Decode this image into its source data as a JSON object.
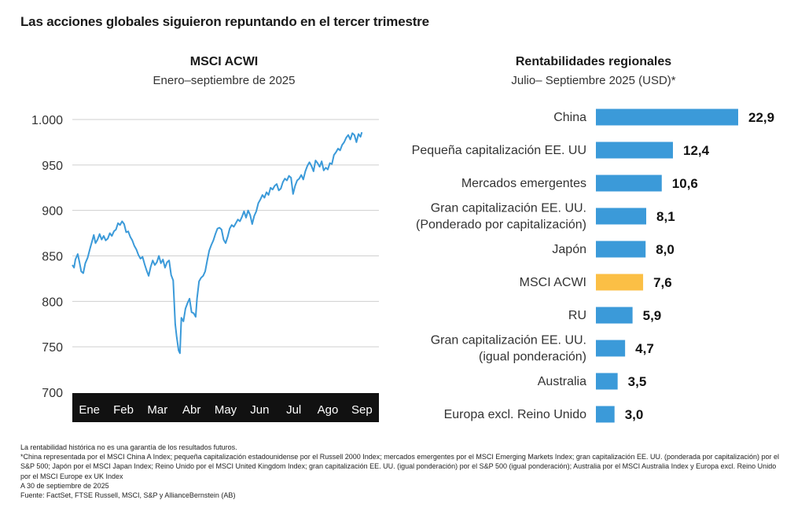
{
  "main_title": "Las acciones globales siguieron repuntando en el tercer trimestre",
  "footnotes": [
    "La rentabilidad histórica no es una garantía de los resultados futuros.",
    "*China representada por el MSCI China A Index; pequeña capitalización estadounidense por el Russell 2000 Index; mercados emergentes por el MSCI Emerging Markets Index; gran capitalización EE. UU. (ponderada por capitalización) por el S&P 500; Japón por el MSCI Japan Index; Reino Unido por el MSCI United Kingdom Index; gran capitalización EE. UU. (igual ponderación) por el S&P 500 (igual ponderación); Australia por el MSCI Australia Index y Europa excl. Reino Unido por el MSCI Europe ex UK Index",
    "A 30 de septiembre de 2025",
    "Fuente: FactSet, FTSE Russell, MSCI, S&P y AllianceBernstein (AB)"
  ],
  "chart_data": [
    {
      "type": "line",
      "title": "MSCI ACWI",
      "subtitle": "Enero–septiembre de 2025",
      "xlabel": "",
      "ylabel": "",
      "x_ticks": [
        "Ene",
        "Feb",
        "Mar",
        "Abr",
        "May",
        "Jun",
        "Jul",
        "Ago",
        "Sep"
      ],
      "y_ticks": [
        "1.000",
        "950",
        "900",
        "850",
        "800",
        "750",
        "700"
      ],
      "ylim": [
        700,
        1000
      ],
      "xlim": [
        0,
        9
      ],
      "grid": true,
      "series": [
        {
          "color": "#3b9ad9",
          "points": [
            [
              0.0,
              840
            ],
            [
              0.05,
              837
            ],
            [
              0.09,
              846
            ],
            [
              0.16,
              852
            ],
            [
              0.21,
              843
            ],
            [
              0.26,
              833
            ],
            [
              0.32,
              831
            ],
            [
              0.38,
              842
            ],
            [
              0.45,
              848
            ],
            [
              0.52,
              858
            ],
            [
              0.58,
              866
            ],
            [
              0.63,
              873
            ],
            [
              0.68,
              864
            ],
            [
              0.74,
              868
            ],
            [
              0.8,
              874
            ],
            [
              0.86,
              868
            ],
            [
              0.92,
              872
            ],
            [
              0.98,
              867
            ],
            [
              1.04,
              869
            ],
            [
              1.1,
              875
            ],
            [
              1.16,
              872
            ],
            [
              1.22,
              877
            ],
            [
              1.28,
              879
            ],
            [
              1.34,
              886
            ],
            [
              1.4,
              884
            ],
            [
              1.46,
              888
            ],
            [
              1.52,
              885
            ],
            [
              1.58,
              876
            ],
            [
              1.64,
              877
            ],
            [
              1.7,
              871
            ],
            [
              1.76,
              867
            ],
            [
              1.82,
              861
            ],
            [
              1.88,
              857
            ],
            [
              1.94,
              851
            ],
            [
              2.0,
              847
            ],
            [
              2.06,
              849
            ],
            [
              2.12,
              841
            ],
            [
              2.18,
              834
            ],
            [
              2.24,
              828
            ],
            [
              2.3,
              838
            ],
            [
              2.36,
              845
            ],
            [
              2.42,
              840
            ],
            [
              2.48,
              843
            ],
            [
              2.54,
              850
            ],
            [
              2.6,
              842
            ],
            [
              2.66,
              846
            ],
            [
              2.72,
              837
            ],
            [
              2.78,
              843
            ],
            [
              2.84,
              845
            ],
            [
              2.9,
              829
            ],
            [
              2.96,
              823
            ],
            [
              3.02,
              775
            ],
            [
              3.06,
              762
            ],
            [
              3.12,
              746
            ],
            [
              3.16,
              743
            ],
            [
              3.2,
              782
            ],
            [
              3.26,
              778
            ],
            [
              3.32,
              792
            ],
            [
              3.38,
              798
            ],
            [
              3.44,
              803
            ],
            [
              3.5,
              788
            ],
            [
              3.56,
              787
            ],
            [
              3.62,
              783
            ],
            [
              3.66,
              803
            ],
            [
              3.72,
              822
            ],
            [
              3.78,
              826
            ],
            [
              3.84,
              828
            ],
            [
              3.9,
              833
            ],
            [
              3.96,
              845
            ],
            [
              4.02,
              856
            ],
            [
              4.08,
              862
            ],
            [
              4.14,
              867
            ],
            [
              4.2,
              874
            ],
            [
              4.26,
              880
            ],
            [
              4.32,
              881
            ],
            [
              4.38,
              879
            ],
            [
              4.44,
              868
            ],
            [
              4.5,
              864
            ],
            [
              4.56,
              871
            ],
            [
              4.62,
              880
            ],
            [
              4.68,
              884
            ],
            [
              4.74,
              882
            ],
            [
              4.8,
              886
            ],
            [
              4.86,
              890
            ],
            [
              4.92,
              888
            ],
            [
              4.98,
              893
            ],
            [
              5.04,
              899
            ],
            [
              5.1,
              892
            ],
            [
              5.16,
              900
            ],
            [
              5.22,
              895
            ],
            [
              5.28,
              885
            ],
            [
              5.34,
              894
            ],
            [
              5.4,
              899
            ],
            [
              5.46,
              908
            ],
            [
              5.52,
              912
            ],
            [
              5.58,
              917
            ],
            [
              5.64,
              914
            ],
            [
              5.7,
              920
            ],
            [
              5.76,
              917
            ],
            [
              5.82,
              925
            ],
            [
              5.88,
              923
            ],
            [
              5.94,
              927
            ],
            [
              6.0,
              929
            ],
            [
              6.06,
              922
            ],
            [
              6.12,
              924
            ],
            [
              6.18,
              931
            ],
            [
              6.24,
              935
            ],
            [
              6.3,
              933
            ],
            [
              6.36,
              938
            ],
            [
              6.42,
              936
            ],
            [
              6.48,
              918
            ],
            [
              6.54,
              927
            ],
            [
              6.6,
              933
            ],
            [
              6.66,
              935
            ],
            [
              6.72,
              939
            ],
            [
              6.78,
              934
            ],
            [
              6.84,
              943
            ],
            [
              6.9,
              949
            ],
            [
              6.96,
              953
            ],
            [
              7.02,
              949
            ],
            [
              7.08,
              943
            ],
            [
              7.14,
              955
            ],
            [
              7.2,
              952
            ],
            [
              7.26,
              948
            ],
            [
              7.32,
              954
            ],
            [
              7.38,
              944
            ],
            [
              7.44,
              947
            ],
            [
              7.5,
              945
            ],
            [
              7.56,
              952
            ],
            [
              7.62,
              951
            ],
            [
              7.68,
              961
            ],
            [
              7.74,
              964
            ],
            [
              7.8,
              968
            ],
            [
              7.86,
              966
            ],
            [
              7.92,
              972
            ],
            [
              7.98,
              975
            ],
            [
              8.04,
              980
            ],
            [
              8.1,
              983
            ],
            [
              8.16,
              978
            ],
            [
              8.22,
              985
            ],
            [
              8.28,
              983
            ],
            [
              8.34,
              975
            ],
            [
              8.4,
              984
            ],
            [
              8.46,
              981
            ],
            [
              8.5,
              986
            ]
          ]
        }
      ]
    },
    {
      "type": "bar",
      "orientation": "horizontal",
      "title": "Rentabilidades regionales",
      "subtitle": "Julio– Septiembre 2025 (USD)*",
      "xlabel": "",
      "ylabel": "",
      "xlim": [
        0,
        22.9
      ],
      "grid": false,
      "categories": [
        [
          "China"
        ],
        [
          "Pequeña capitalización EE. UU"
        ],
        [
          "Mercados emergentes"
        ],
        [
          "Gran capitalización EE. UU.",
          "(Ponderado por capitalización)"
        ],
        [
          "Japón"
        ],
        [
          "MSCI ACWI"
        ],
        [
          "RU"
        ],
        [
          "Gran capitalización EE. UU.",
          "(igual ponderación)"
        ],
        [
          "Australia"
        ],
        [
          "Europa excl. Reino Unido"
        ]
      ],
      "values": [
        22.9,
        12.4,
        10.6,
        8.1,
        8.0,
        7.6,
        5.9,
        4.7,
        3.5,
        3.0
      ],
      "value_labels": [
        "22,9",
        "12,4",
        "10,6",
        "8,1",
        "8,0",
        "7,6",
        "5,9",
        "4,7",
        "3,5",
        "3,0"
      ],
      "colors": [
        "#3b9ad9",
        "#3b9ad9",
        "#3b9ad9",
        "#3b9ad9",
        "#3b9ad9",
        "#fbbf45",
        "#3b9ad9",
        "#3b9ad9",
        "#3b9ad9",
        "#3b9ad9"
      ]
    }
  ]
}
